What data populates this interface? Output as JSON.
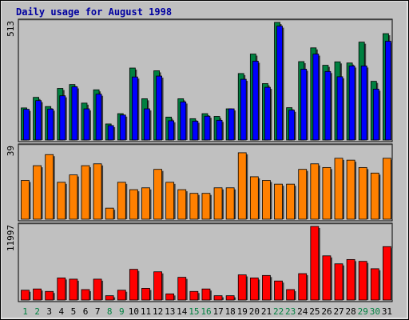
{
  "colors": {
    "frame_bg": "#c0c0c0",
    "plot_bg": "#c0c0c0",
    "title": "#0000a0",
    "label": "#000000",
    "weekday_label": "#000000",
    "weekend_label": "#008040",
    "hits": "#008040",
    "files": "#0000ff",
    "pages": "#ff8000",
    "kbytes": "#ff0000"
  },
  "chart_data": {
    "type": "bar",
    "title": "Daily usage for August 1998",
    "categories": [
      "1",
      "2",
      "3",
      "4",
      "5",
      "6",
      "7",
      "8",
      "9",
      "10",
      "11",
      "12",
      "13",
      "14",
      "15",
      "16",
      "17",
      "18",
      "19",
      "20",
      "21",
      "22",
      "23",
      "24",
      "25",
      "26",
      "27",
      "28",
      "29",
      "30",
      "31"
    ],
    "weekend_days": [
      "1",
      "2",
      "8",
      "9",
      "15",
      "16",
      "22",
      "23",
      "29",
      "30"
    ],
    "panels": [
      {
        "axis_max_label": "513",
        "ylim": [
          0,
          513
        ],
        "series": [
          {
            "values": [
              140,
              186,
              146,
              225,
              242,
              161,
              219,
              70,
              115,
              314,
              180,
              302,
              100,
              180,
              93,
              115,
              103,
              136,
              290,
              375,
              246,
              513,
              141,
              342,
              402,
              326,
              341,
              336,
              427,
              256,
              464
            ]
          },
          {
            "values": [
              134,
              172,
              135,
              193,
              232,
              136,
              200,
              63,
              109,
              275,
              136,
              279,
              84,
              166,
              82,
              104,
              86,
              136,
              265,
              344,
              230,
              497,
              130,
              309,
              375,
              299,
              276,
              323,
              323,
              222,
              431
            ]
          }
        ]
      },
      {
        "axis_max_label": "39",
        "ylim": [
          0,
          39
        ],
        "series": [
          {
            "values": [
              21,
              29,
              35,
              20,
              24,
              29,
              30,
              6,
              20,
              16,
              17,
              27,
              20,
              16,
              14,
              14,
              17,
              17,
              36,
              23,
              21,
              19,
              19,
              27,
              30,
              28,
              33,
              32,
              28,
              25,
              33
            ]
          }
        ]
      },
      {
        "axis_max_label": "11997",
        "ylim": [
          0,
          11997
        ],
        "series": [
          {
            "values": [
              1600,
              1800,
              1400,
              3600,
              3400,
              1700,
              3400,
              700,
              1600,
              5000,
              1900,
              4600,
              1000,
              3700,
              1400,
              1800,
              700,
              700,
              4100,
              3600,
              4000,
              3100,
              1700,
              4300,
              11997,
              7200,
              5900,
              6600,
              6300,
              5100,
              8700
            ]
          }
        ]
      }
    ]
  }
}
